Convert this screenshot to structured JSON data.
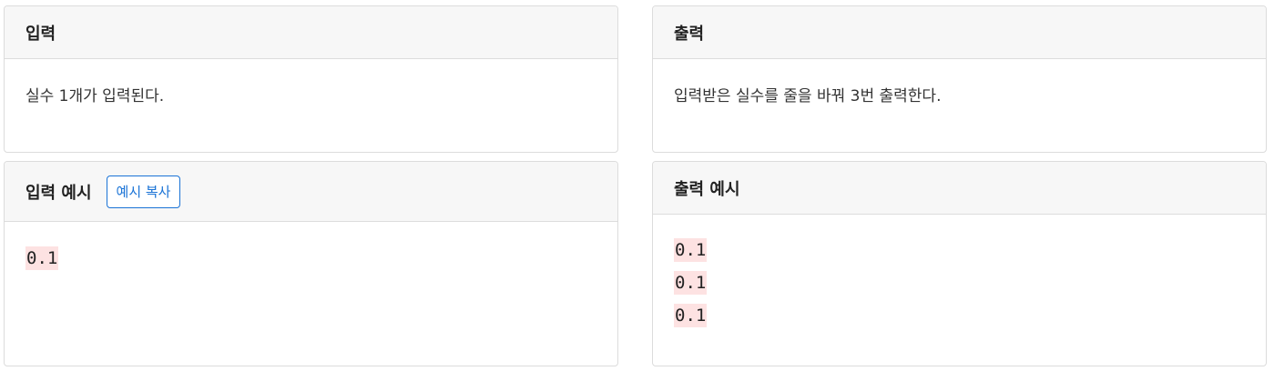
{
  "input_section": {
    "title": "입력",
    "description": "실수 1개가 입력된다."
  },
  "output_section": {
    "title": "출력",
    "description": "입력받은 실수를 줄을 바꿔 3번 출력한다."
  },
  "input_example": {
    "title": "입력 예시",
    "copy_button": "예시 복사",
    "lines": [
      "0.1"
    ]
  },
  "output_example": {
    "title": "출력 예시",
    "lines": [
      "0.1",
      "0.1",
      "0.1"
    ]
  }
}
